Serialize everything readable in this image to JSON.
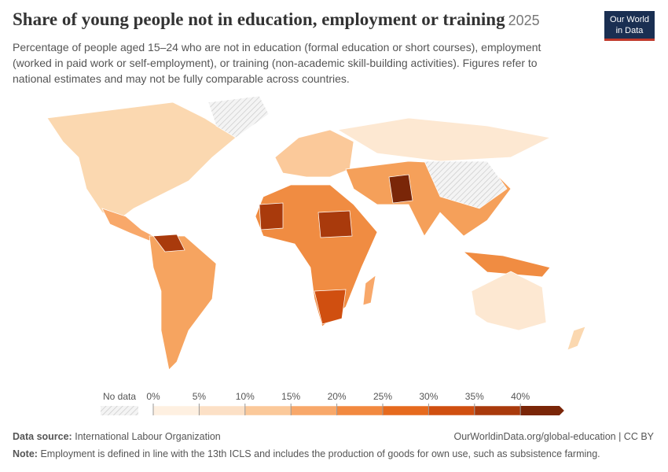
{
  "header": {
    "title": "Share of young people not in education, employment or training",
    "year": "2025",
    "subtitle": "Percentage of people aged 15–24 who are not in education (formal education or short courses), employment (worked in paid work or self-employment), or training (non-academic skill-building activities). Figures refer to national estimates and may not be fully comparable across countries.",
    "logo": [
      "Our World",
      "in Data"
    ]
  },
  "legend": {
    "no_data": "No data",
    "ticks": [
      {
        "value": 0,
        "label": "0%"
      },
      {
        "value": 5,
        "label": "5%"
      },
      {
        "value": 10,
        "label": "10%"
      },
      {
        "value": 15,
        "label": "15%"
      },
      {
        "value": 20,
        "label": "20%"
      },
      {
        "value": 25,
        "label": "25%"
      },
      {
        "value": 30,
        "label": "30%"
      },
      {
        "value": 35,
        "label": "35%"
      },
      {
        "value": 40,
        "label": "40%"
      }
    ],
    "colors": [
      "#fef0e1",
      "#fce0c6",
      "#fbc99a",
      "#f8a86a",
      "#f2893f",
      "#e66a1e",
      "#d04f10",
      "#a93a0c",
      "#7a2608"
    ]
  },
  "footer": {
    "source_label": "Data source:",
    "source": "International Labour Organization",
    "url": "OurWorldinData.org/global-education | CC BY",
    "note_label": "Note:",
    "note": "Employment is defined in line with the 13th ICLS and includes the production of goods for own use, such as subsistence farming."
  }
}
